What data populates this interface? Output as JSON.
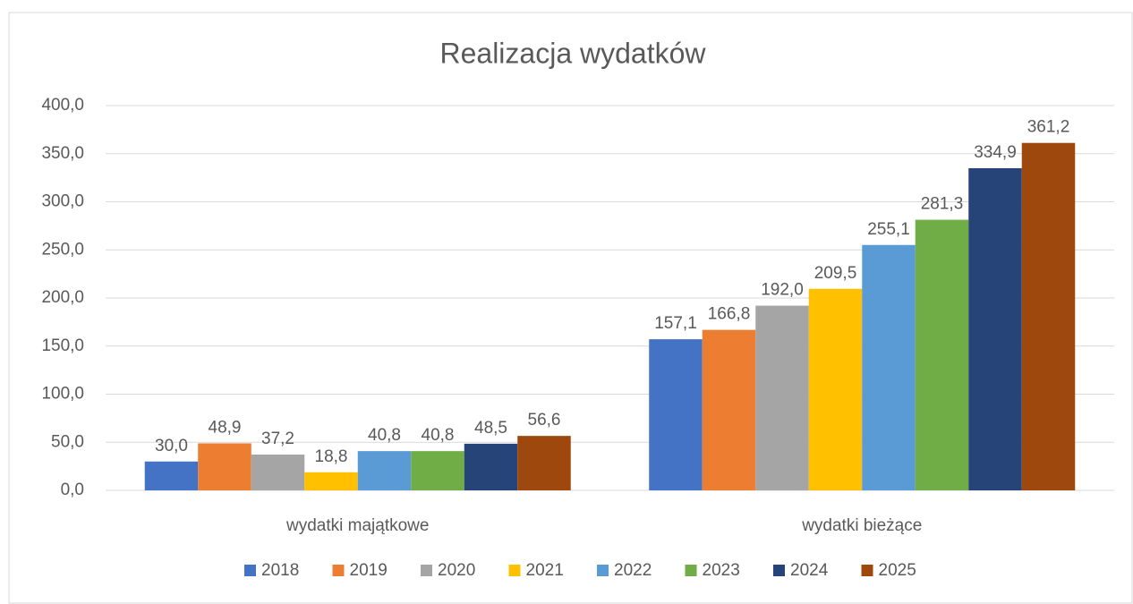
{
  "chart_data": {
    "type": "bar",
    "title": "Realizacja wydatków",
    "categories": [
      "wydatki majątkowe",
      "wydatki bieżące"
    ],
    "series": [
      {
        "name": "2018",
        "color": "#4472c4",
        "values": [
          30.0,
          157.1
        ],
        "value_labels": [
          "30,0",
          "157,1"
        ]
      },
      {
        "name": "2019",
        "color": "#ed7d31",
        "values": [
          48.9,
          166.8
        ],
        "value_labels": [
          "48,9",
          "166,8"
        ]
      },
      {
        "name": "2020",
        "color": "#a5a5a5",
        "values": [
          37.2,
          192.0
        ],
        "value_labels": [
          "37,2",
          "192,0"
        ]
      },
      {
        "name": "2021",
        "color": "#ffc000",
        "values": [
          18.8,
          209.5
        ],
        "value_labels": [
          "18,8",
          "209,5"
        ]
      },
      {
        "name": "2022",
        "color": "#5b9bd5",
        "values": [
          40.8,
          255.1
        ],
        "value_labels": [
          "40,8",
          "255,1"
        ]
      },
      {
        "name": "2023",
        "color": "#70ad47",
        "values": [
          40.8,
          281.3
        ],
        "value_labels": [
          "40,8",
          "281,3"
        ]
      },
      {
        "name": "2024",
        "color": "#264478",
        "values": [
          48.5,
          334.9
        ],
        "value_labels": [
          "48,5",
          "334,9"
        ]
      },
      {
        "name": "2025",
        "color": "#9e480e",
        "values": [
          56.6,
          361.2
        ],
        "value_labels": [
          "56,6",
          "361,2"
        ]
      }
    ],
    "ylim": [
      0,
      400
    ],
    "yticks": [
      {
        "value": 0,
        "label": "0,0"
      },
      {
        "value": 50,
        "label": "50,0"
      },
      {
        "value": 100,
        "label": "100,0"
      },
      {
        "value": 150,
        "label": "150,0"
      },
      {
        "value": 200,
        "label": "200,0"
      },
      {
        "value": 250,
        "label": "250,0"
      },
      {
        "value": 300,
        "label": "300,0"
      },
      {
        "value": 350,
        "label": "350,0"
      },
      {
        "value": 400,
        "label": "400,0"
      }
    ],
    "grid": true,
    "legend": "bottom"
  }
}
